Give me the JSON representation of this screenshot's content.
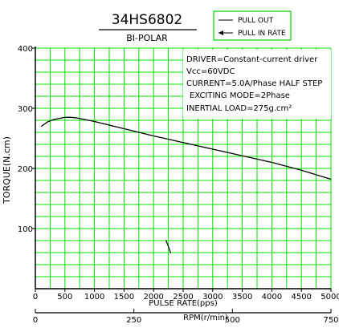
{
  "chart_data": {
    "type": "line",
    "title": "34HS6802",
    "subtitle": "BI-POLAR",
    "xlabel": "PULSE RATE(pps)",
    "ylabel": "TORQUE(N.cm)",
    "x2label": "RPM(r/min)",
    "xlim": [
      0,
      5000
    ],
    "ylim": [
      0,
      400
    ],
    "x_ticks": [
      "0",
      "500",
      "1000",
      "1500",
      "2000",
      "2500",
      "3000",
      "3500",
      "4000",
      "4500",
      "5000"
    ],
    "y_ticks": [
      "100",
      "200",
      "300",
      "400"
    ],
    "rpm_ticks": [
      {
        "label": "0",
        "pps": 0
      },
      {
        "label": "250",
        "pps": 1666.7
      },
      {
        "label": "500",
        "pps": 3333.3
      },
      {
        "label": "750",
        "pps": 5000
      }
    ],
    "grid": true,
    "grid_color": "#00e000",
    "legend": [
      {
        "label": "PULL OUT",
        "style": "line"
      },
      {
        "label": "PULL IN RATE",
        "style": "arrow"
      }
    ],
    "annotations": [
      "DRIVER=Constant-current driver",
      "Vcc=60VDC",
      "CURRENT=5.0A/Phase HALF STEP",
      "EXCITING MODE=2Phase",
      "INERTIAL LOAD=275g.cm²"
    ],
    "series": [
      {
        "name": "PULL OUT",
        "x": [
          100,
          200,
          300,
          400,
          500,
          600,
          700,
          800,
          1000,
          1500,
          2000,
          2500,
          3000,
          3500,
          4000,
          4500,
          5000
        ],
        "y": [
          270,
          277,
          281,
          283,
          285,
          285,
          284,
          282,
          278,
          266,
          254,
          243,
          232,
          221,
          210,
          197,
          182
        ]
      }
    ],
    "pull_in_rate_marker": {
      "x": 2250,
      "y": 70
    }
  }
}
